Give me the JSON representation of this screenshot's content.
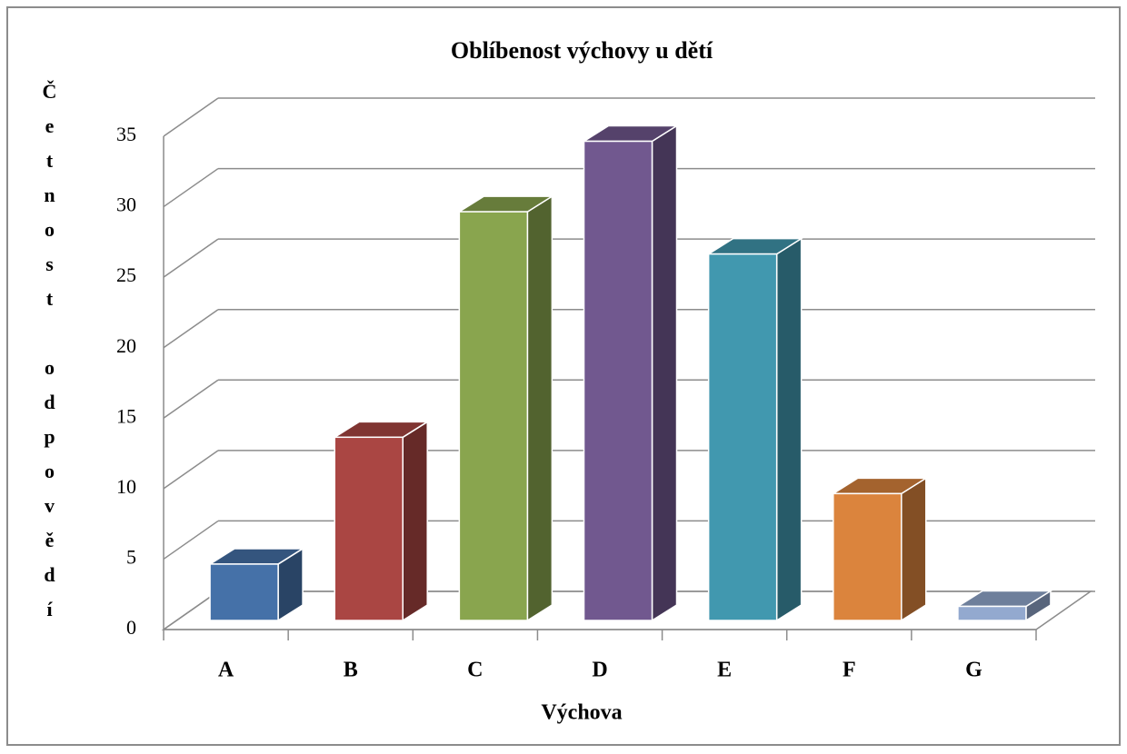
{
  "chart_data": {
    "type": "bar3d",
    "title": "Oblíbenost výchovy  u dětí",
    "x_label": "Výchova",
    "y_label": "Četnost odpovědí",
    "categories": [
      "A",
      "B",
      "C",
      "D",
      "E",
      "F",
      "G"
    ],
    "values": [
      4,
      13,
      29,
      34,
      26,
      9,
      1
    ],
    "colors": [
      "#4571a8",
      "#aa4643",
      "#89a54e",
      "#71588f",
      "#4198af",
      "#db843d",
      "#93a9cf"
    ],
    "ylim": [
      0,
      35
    ],
    "yticks": [
      0,
      5,
      10,
      15,
      20,
      25,
      30,
      35
    ],
    "grid": true
  }
}
